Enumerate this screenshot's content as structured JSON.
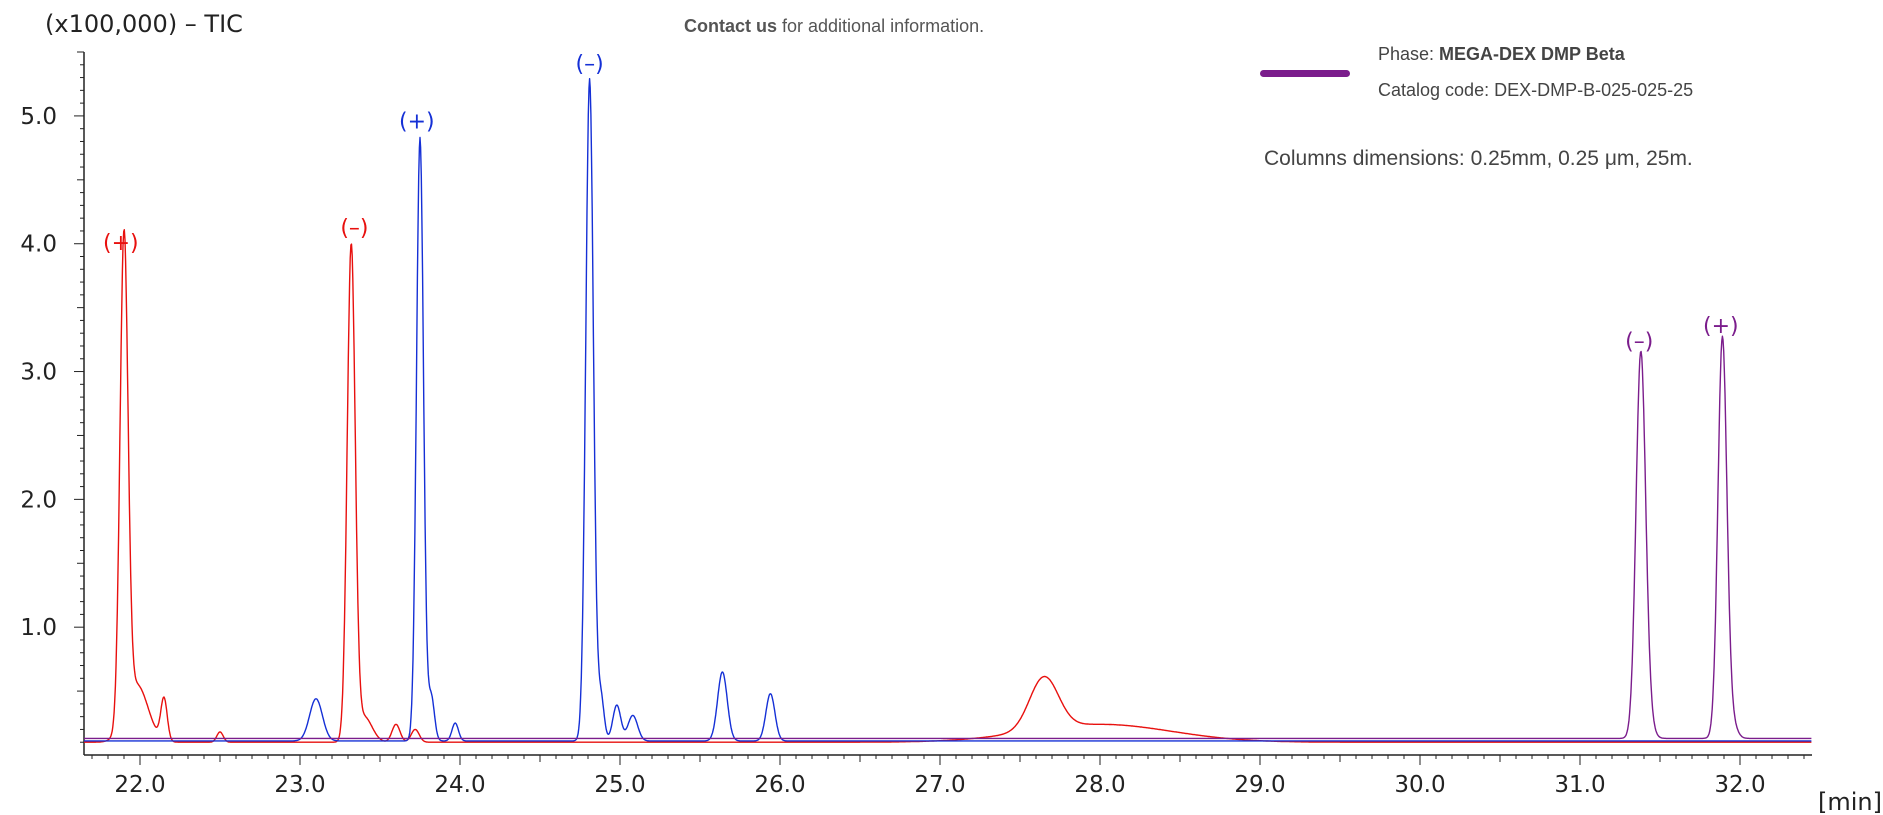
{
  "header": {
    "contact_link": "Contact us",
    "contact_rest": " for additional information.",
    "phase_label": "Phase: ",
    "phase_value": "MEGA-DEX DMP Beta",
    "catalog": "Catalog code: DEX-DMP-B-025-025-25",
    "dimensions": "Columns dimensions: 0.25mm, 0.25 μm, 25m."
  },
  "colors": {
    "red": "#e8100e",
    "blue": "#1530d6",
    "purple": "#7b1d8c",
    "axis": "#222222"
  },
  "chart_data": {
    "type": "line",
    "title": "",
    "ylabel": "(x100,000) – TIC",
    "xlabel": "[min]",
    "xlim": [
      21.65,
      32.45
    ],
    "ylim": [
      0,
      5.5
    ],
    "baseline": 0.1,
    "x_ticks": [
      22.0,
      23.0,
      24.0,
      25.0,
      26.0,
      27.0,
      28.0,
      29.0,
      30.0,
      31.0,
      32.0
    ],
    "x_tick_labels": [
      "22.0",
      "23.0",
      "24.0",
      "25.0",
      "26.0",
      "27.0",
      "28.0",
      "29.0",
      "30.0",
      "31.0",
      "32.0"
    ],
    "y_ticks": [
      1.0,
      2.0,
      3.0,
      4.0,
      5.0
    ],
    "y_tick_labels": [
      "1.0",
      "2.0",
      "3.0",
      "4.0",
      "5.0"
    ],
    "grid": false,
    "series": [
      {
        "color": "red",
        "baseline": 0.1,
        "peaks": [
          {
            "x": 21.9,
            "y": 3.78,
            "w": 0.025
          },
          {
            "x": 21.98,
            "y": 0.45,
            "w": 0.07
          },
          {
            "x": 22.15,
            "y": 0.33,
            "w": 0.02
          },
          {
            "x": 22.5,
            "y": 0.08,
            "w": 0.02
          },
          {
            "x": 23.32,
            "y": 3.85,
            "w": 0.025
          },
          {
            "x": 23.4,
            "y": 0.2,
            "w": 0.05
          },
          {
            "x": 23.6,
            "y": 0.14,
            "w": 0.025
          },
          {
            "x": 23.72,
            "y": 0.1,
            "w": 0.025
          },
          {
            "x": 27.65,
            "y": 0.41,
            "w": 0.09
          },
          {
            "x": 28.0,
            "y": 0.14,
            "w": 0.45
          }
        ]
      },
      {
        "color": "blue",
        "baseline": 0.11,
        "peaks": [
          {
            "x": 23.1,
            "y": 0.33,
            "w": 0.04
          },
          {
            "x": 23.75,
            "y": 4.72,
            "w": 0.022
          },
          {
            "x": 23.82,
            "y": 0.35,
            "w": 0.02
          },
          {
            "x": 23.97,
            "y": 0.14,
            "w": 0.02
          },
          {
            "x": 24.81,
            "y": 5.18,
            "w": 0.024
          },
          {
            "x": 24.88,
            "y": 0.35,
            "w": 0.02
          },
          {
            "x": 24.98,
            "y": 0.28,
            "w": 0.025
          },
          {
            "x": 25.08,
            "y": 0.2,
            "w": 0.03
          },
          {
            "x": 25.64,
            "y": 0.54,
            "w": 0.03
          },
          {
            "x": 25.94,
            "y": 0.37,
            "w": 0.028
          }
        ]
      },
      {
        "color": "purple",
        "baseline": 0.13,
        "peaks": [
          {
            "x": 31.38,
            "y": 3.0,
            "w": 0.03
          },
          {
            "x": 31.43,
            "y": 0.12,
            "w": 0.03
          },
          {
            "x": 31.89,
            "y": 3.13,
            "w": 0.028
          },
          {
            "x": 31.95,
            "y": 0.12,
            "w": 0.03
          }
        ]
      }
    ],
    "annotations": [
      {
        "text": "(+)",
        "x": 21.88,
        "y": 3.95,
        "color": "red"
      },
      {
        "text": "(–)",
        "x": 23.34,
        "y": 4.07,
        "color": "red"
      },
      {
        "text": "(+)",
        "x": 23.73,
        "y": 4.9,
        "color": "blue"
      },
      {
        "text": "(–)",
        "x": 24.81,
        "y": 5.35,
        "color": "blue"
      },
      {
        "text": "(–)",
        "x": 31.37,
        "y": 3.18,
        "color": "purple"
      },
      {
        "text": "(+)",
        "x": 31.88,
        "y": 3.3,
        "color": "purple"
      }
    ]
  }
}
